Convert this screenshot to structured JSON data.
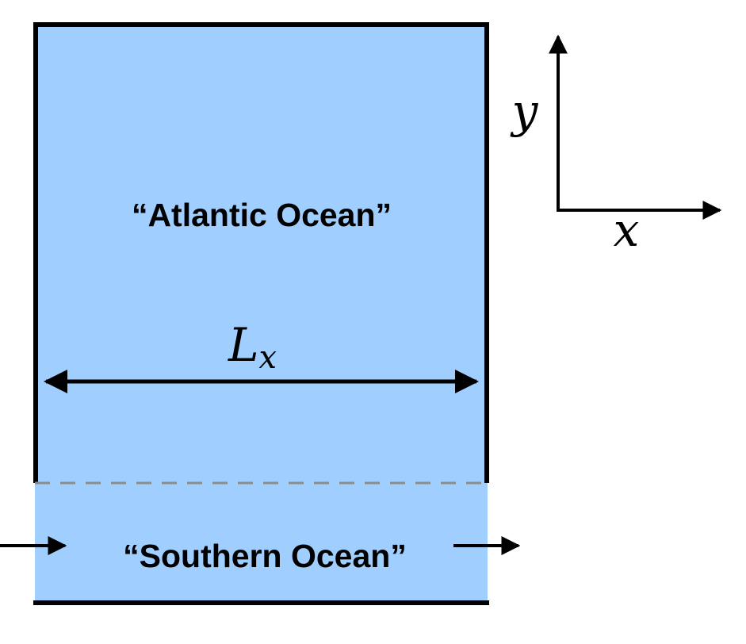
{
  "diagram": {
    "atlantic_label": "“Atlantic Ocean”",
    "southern_label": "“Southern Ocean”",
    "width_label": "L",
    "width_subscript": "x",
    "axis_y_label": "y",
    "axis_x_label": "x"
  },
  "colors": {
    "atlantic_fill": "#a0cfff",
    "southern_fill": "#a0cfff",
    "wall": "#000000",
    "boundary_dash": "#8c8c8c"
  }
}
